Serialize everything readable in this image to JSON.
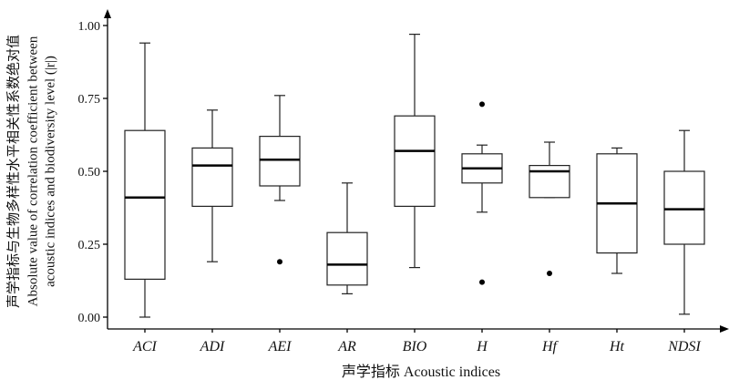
{
  "chart_data": {
    "type": "boxplot",
    "xlabel": "声学指标 Acoustic indices",
    "ylabel_lines": [
      "声学指标与生物多样性水平相关性系数绝对值",
      "Absolute value of correlation coefficient between",
      "acoustic indices and biodiversity level (|r|)"
    ],
    "ylim": [
      0,
      1.05
    ],
    "yticks": [
      "0.00",
      "0.25",
      "0.50",
      "0.75",
      "1.00"
    ],
    "categories": [
      "ACI",
      "ADI",
      "AEI",
      "AR",
      "BIO",
      "H",
      "Hf",
      "Ht",
      "NDSI"
    ],
    "boxes": [
      {
        "label": "ACI",
        "whisker_low": 0.0,
        "q1": 0.13,
        "median": 0.41,
        "q3": 0.64,
        "whisker_high": 0.94,
        "outliers": []
      },
      {
        "label": "ADI",
        "whisker_low": 0.19,
        "q1": 0.38,
        "median": 0.52,
        "q3": 0.58,
        "whisker_high": 0.71,
        "outliers": []
      },
      {
        "label": "AEI",
        "whisker_low": 0.4,
        "q1": 0.45,
        "median": 0.54,
        "q3": 0.62,
        "whisker_high": 0.76,
        "outliers": [
          0.19
        ]
      },
      {
        "label": "AR",
        "whisker_low": 0.08,
        "q1": 0.11,
        "median": 0.18,
        "q3": 0.29,
        "whisker_high": 0.46,
        "outliers": []
      },
      {
        "label": "BIO",
        "whisker_low": 0.17,
        "q1": 0.38,
        "median": 0.57,
        "q3": 0.69,
        "whisker_high": 0.97,
        "outliers": []
      },
      {
        "label": "H",
        "whisker_low": 0.36,
        "q1": 0.46,
        "median": 0.51,
        "q3": 0.56,
        "whisker_high": 0.59,
        "outliers": [
          0.73,
          0.12
        ]
      },
      {
        "label": "Hf",
        "whisker_low": 0.41,
        "q1": 0.41,
        "median": 0.5,
        "q3": 0.52,
        "whisker_high": 0.6,
        "outliers": [
          0.15
        ]
      },
      {
        "label": "Ht",
        "whisker_low": 0.15,
        "q1": 0.22,
        "median": 0.39,
        "q3": 0.56,
        "whisker_high": 0.58,
        "outliers": []
      },
      {
        "label": "NDSI",
        "whisker_low": 0.01,
        "q1": 0.25,
        "median": 0.37,
        "q3": 0.5,
        "whisker_high": 0.64,
        "outliers": []
      }
    ]
  }
}
